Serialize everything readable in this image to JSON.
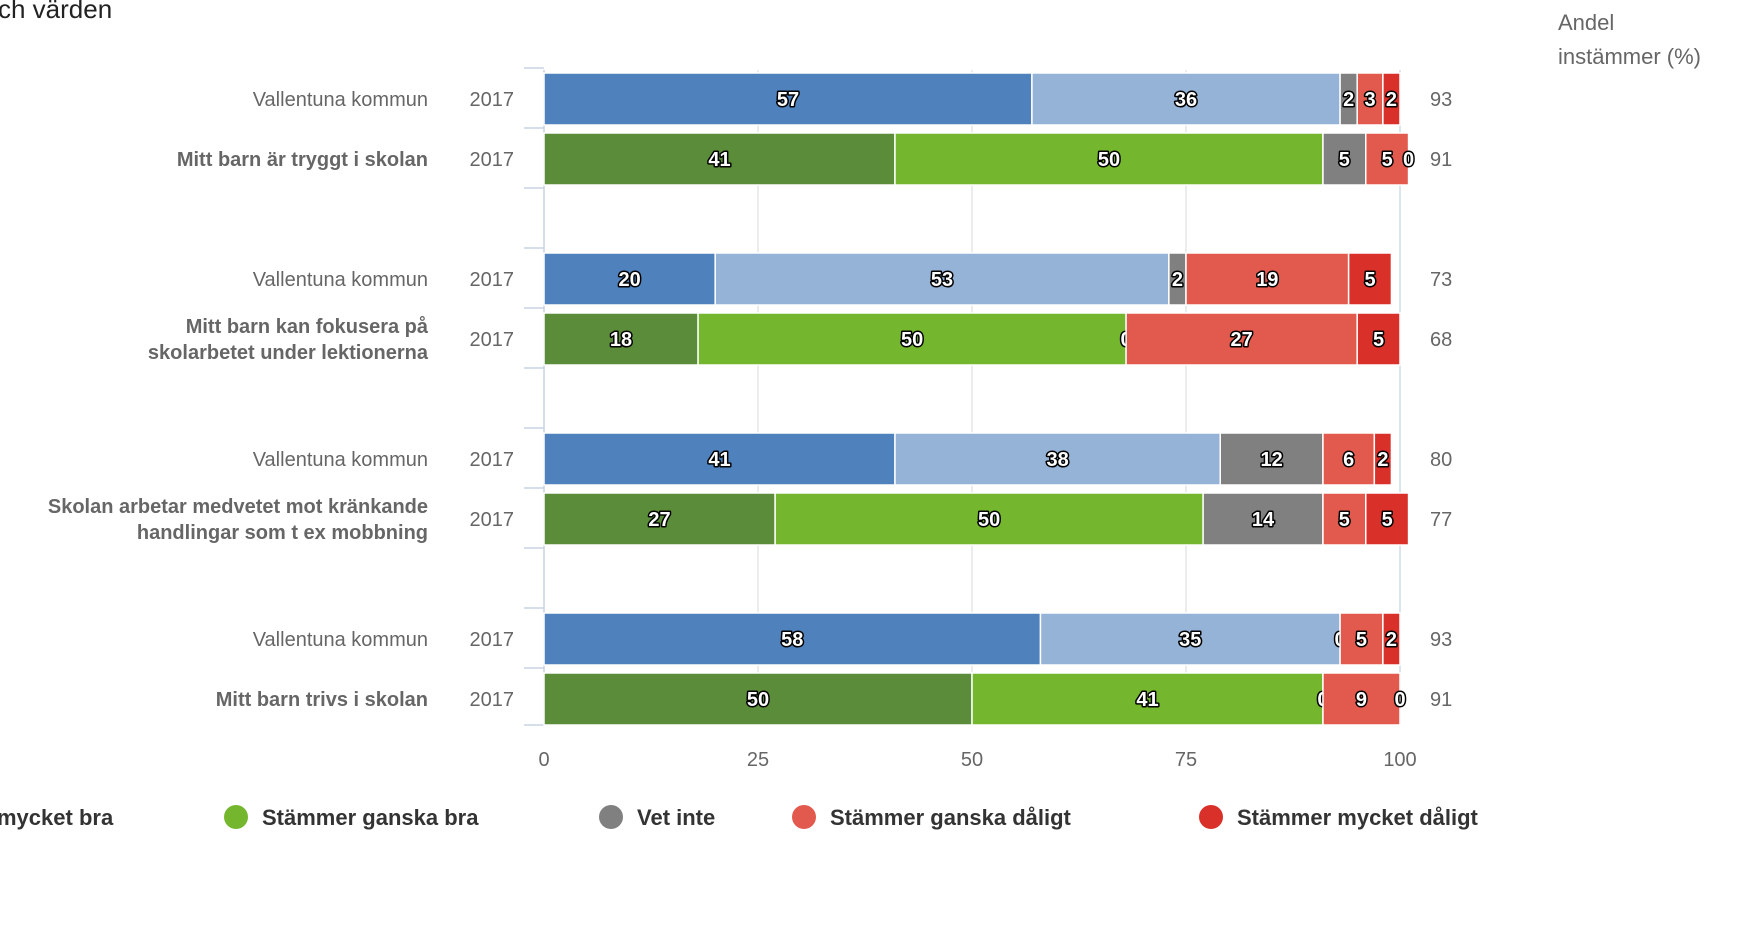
{
  "chart_data": {
    "type": "bar",
    "orientation": "horizontal",
    "stacked": true,
    "title_fragment": "ch värden",
    "side_column_title": [
      "Andel",
      "instämmer (%)"
    ],
    "xlim": [
      0,
      100
    ],
    "x_ticks": [
      "0",
      "25",
      "50",
      "75",
      "100"
    ],
    "grid": true,
    "legend_placement": "bottom",
    "legend": [
      {
        "name": "mycket bra",
        "color": "#1a4f9c",
        "visible_swatch": false
      },
      {
        "name": "Stämmer ganska bra",
        "color": "#74b72e",
        "visible_swatch": true
      },
      {
        "name": "Vet inte",
        "color": "#808080",
        "visible_swatch": true
      },
      {
        "name": "Stämmer ganska dåligt",
        "color": "#e25a4d",
        "visible_swatch": true
      },
      {
        "name": "Stämmer mycket dåligt",
        "color": "#d9302a",
        "visible_swatch": true
      }
    ],
    "groups": [
      {
        "question": [
          "Mitt barn är tryggt i skolan"
        ],
        "rows": [
          {
            "label": "Vallentuna kommun",
            "year": "2017",
            "bold": false,
            "palette": "blue",
            "values": [
              57,
              36,
              2,
              3,
              2
            ],
            "share_agree": "93"
          },
          {
            "label": "Mitt barn är tryggt i skolan",
            "year": "2017",
            "bold": true,
            "palette": "green",
            "values": [
              41,
              50,
              5,
              5,
              0
            ],
            "share_agree": "91"
          }
        ]
      },
      {
        "question": [
          "Mitt barn kan fokusera på",
          "skolarbetet under lektionerna"
        ],
        "rows": [
          {
            "label": "Vallentuna kommun",
            "year": "2017",
            "bold": false,
            "palette": "blue",
            "values": [
              20,
              53,
              2,
              19,
              5
            ],
            "share_agree": "73"
          },
          {
            "label": "Mitt barn kan fokusera på skolarbetet under lektionerna",
            "year": "2017",
            "bold": true,
            "palette": "green",
            "values": [
              18,
              50,
              0,
              27,
              5
            ],
            "share_agree": "68"
          }
        ]
      },
      {
        "question": [
          "Skolan arbetar medvetet mot kränkande",
          "handlingar som t ex mobbning"
        ],
        "rows": [
          {
            "label": "Vallentuna kommun",
            "year": "2017",
            "bold": false,
            "palette": "blue",
            "values": [
              41,
              38,
              12,
              6,
              2
            ],
            "share_agree": "80"
          },
          {
            "label": "Skolan arbetar medvetet mot kränkande handlingar som t ex mobbning",
            "year": "2017",
            "bold": true,
            "palette": "green",
            "values": [
              27,
              50,
              14,
              5,
              5
            ],
            "share_agree": "77"
          }
        ]
      },
      {
        "question": [
          "Mitt barn trivs i skolan"
        ],
        "rows": [
          {
            "label": "Vallentuna kommun",
            "year": "2017",
            "bold": false,
            "palette": "blue",
            "values": [
              58,
              35,
              0,
              5,
              2
            ],
            "share_agree": "93"
          },
          {
            "label": "Mitt barn trivs i skolan",
            "year": "2017",
            "bold": true,
            "palette": "green",
            "values": [
              50,
              41,
              0,
              9,
              0
            ],
            "share_agree": "91"
          }
        ]
      }
    ],
    "palettes": {
      "blue": [
        "#4f81bd",
        "#95b3d7",
        "#808080",
        "#e25a4d",
        "#d9302a"
      ],
      "green": [
        "#5b8c3a",
        "#74b72e",
        "#808080",
        "#e25a4d",
        "#d9302a"
      ]
    }
  }
}
